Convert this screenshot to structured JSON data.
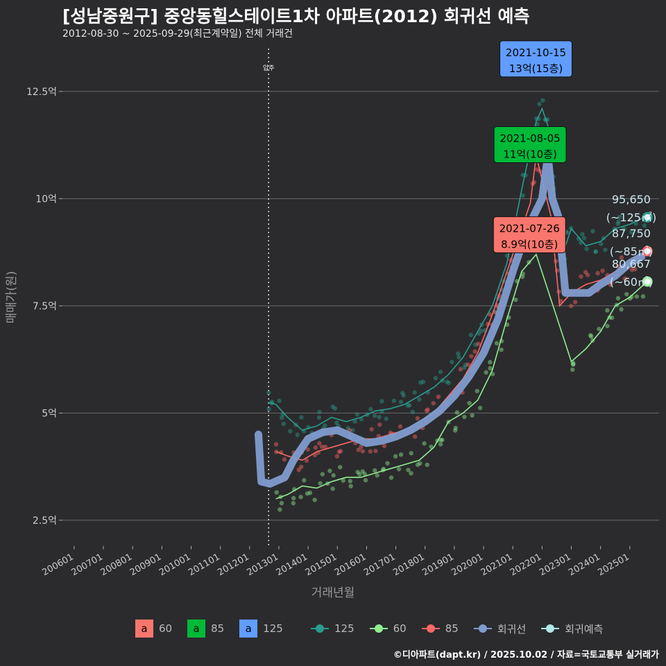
{
  "title": "[성남중원구] 중앙동힐스테이트1차 아파트(2012) 회귀선 예측",
  "subtitle": "2012-08-30 ~ 2025-09-29(최근계약일) 전체 거래건",
  "footer": "©디아파트(dapt.kr) / 2025.10.02 / 자료=국토교통부 실거래가",
  "chart_data": {
    "type": "line",
    "xlabel": "거래년월",
    "ylabel": "매매가(원)",
    "x_ticks": [
      "200601",
      "200701",
      "200801",
      "200901",
      "201001",
      "201101",
      "201201",
      "201301",
      "201401",
      "201501",
      "201601",
      "201701",
      "201801",
      "201901",
      "202001",
      "202101",
      "202201",
      "202301",
      "202401",
      "202501"
    ],
    "x_range": [
      2005.6,
      2026.0
    ],
    "y_ticks": [
      "2.5억",
      "5억",
      "7.5억",
      "10억",
      "12.5억"
    ],
    "y_tick_values": [
      2.5,
      5,
      7.5,
      10,
      12.5
    ],
    "y_range": [
      1.9,
      13.5
    ],
    "grid": true,
    "vline": {
      "x": 2012.65,
      "label": "입주"
    },
    "colors": {
      "s60": "#f8766d",
      "s85": "#00ba38",
      "s125": "#619cff",
      "line125": "#2a9d8f",
      "line60": "#90ee90",
      "line85": "#ff6666",
      "regression": "#7f9ccf",
      "forecast": "#b0e8e8"
    },
    "series": [
      {
        "name": "125",
        "values": [
          [
            2012.63,
            5.25
          ],
          [
            2012.9,
            5.2
          ],
          [
            2013.3,
            4.9
          ],
          [
            2013.8,
            4.6
          ],
          [
            2014.3,
            4.7
          ],
          [
            2014.8,
            4.9
          ],
          [
            2015.3,
            4.8
          ],
          [
            2015.8,
            4.9
          ],
          [
            2016.3,
            5.05
          ],
          [
            2016.8,
            5.1
          ],
          [
            2017.3,
            5.2
          ],
          [
            2017.8,
            5.4
          ],
          [
            2018.3,
            5.6
          ],
          [
            2018.8,
            5.9
          ],
          [
            2019.3,
            6.3
          ],
          [
            2019.8,
            6.9
          ],
          [
            2020.3,
            7.5
          ],
          [
            2020.8,
            8.5
          ],
          [
            2021.3,
            10.2
          ],
          [
            2021.8,
            11.8
          ],
          [
            2022.0,
            12.1
          ],
          [
            2022.2,
            11.7
          ],
          [
            2022.6,
            8.5
          ],
          [
            2023.0,
            9.3
          ],
          [
            2023.5,
            8.9
          ],
          [
            2024.0,
            9.0
          ],
          [
            2024.5,
            9.3
          ],
          [
            2025.0,
            9.4
          ],
          [
            2025.6,
            9.6
          ]
        ]
      },
      {
        "name": "60",
        "values": [
          [
            2012.9,
            3.0
          ],
          [
            2013.3,
            3.1
          ],
          [
            2013.8,
            3.3
          ],
          [
            2014.3,
            3.25
          ],
          [
            2014.8,
            3.4
          ],
          [
            2015.3,
            3.5
          ],
          [
            2015.8,
            3.5
          ],
          [
            2016.3,
            3.6
          ],
          [
            2016.8,
            3.7
          ],
          [
            2017.3,
            3.8
          ],
          [
            2017.8,
            3.9
          ],
          [
            2018.3,
            4.2
          ],
          [
            2018.8,
            4.8
          ],
          [
            2019.3,
            5.0
          ],
          [
            2019.8,
            5.3
          ],
          [
            2020.3,
            6.0
          ],
          [
            2020.8,
            7.2
          ],
          [
            2021.3,
            8.3
          ],
          [
            2021.8,
            8.7
          ],
          [
            2023.0,
            6.2
          ],
          [
            2023.5,
            6.5
          ],
          [
            2024.0,
            6.9
          ],
          [
            2024.5,
            7.5
          ],
          [
            2025.0,
            7.7
          ],
          [
            2025.6,
            8.07
          ]
        ]
      },
      {
        "name": "85",
        "values": [
          [
            2012.9,
            4.1
          ],
          [
            2013.3,
            4.0
          ],
          [
            2013.8,
            3.9
          ],
          [
            2014.3,
            4.1
          ],
          [
            2014.8,
            4.2
          ],
          [
            2015.3,
            4.3
          ],
          [
            2015.8,
            4.4
          ],
          [
            2016.3,
            4.4
          ],
          [
            2016.8,
            4.5
          ],
          [
            2017.3,
            4.6
          ],
          [
            2017.8,
            4.8
          ],
          [
            2018.3,
            5.0
          ],
          [
            2018.8,
            5.4
          ],
          [
            2019.3,
            5.8
          ],
          [
            2019.8,
            6.4
          ],
          [
            2020.3,
            7.3
          ],
          [
            2020.8,
            8.3
          ],
          [
            2021.3,
            9.3
          ],
          [
            2021.6,
            9.9
          ],
          [
            2021.8,
            11.0
          ],
          [
            2022.3,
            9.6
          ],
          [
            2022.6,
            7.5
          ],
          [
            2023.0,
            7.8
          ],
          [
            2023.5,
            8.0
          ],
          [
            2024.0,
            8.1
          ],
          [
            2024.5,
            8.3
          ],
          [
            2025.0,
            8.5
          ],
          [
            2025.6,
            8.78
          ]
        ]
      },
      {
        "name": "회귀선",
        "values": [
          [
            2012.3,
            4.5
          ],
          [
            2012.4,
            3.4
          ],
          [
            2012.7,
            3.35
          ],
          [
            2013.2,
            3.5
          ],
          [
            2013.5,
            3.9
          ],
          [
            2014.0,
            4.4
          ],
          [
            2014.5,
            4.55
          ],
          [
            2015.0,
            4.6
          ],
          [
            2015.5,
            4.45
          ],
          [
            2016.0,
            4.3
          ],
          [
            2016.5,
            4.35
          ],
          [
            2017.0,
            4.45
          ],
          [
            2017.5,
            4.6
          ],
          [
            2018.0,
            4.8
          ],
          [
            2018.5,
            5.05
          ],
          [
            2019.0,
            5.4
          ],
          [
            2019.5,
            5.85
          ],
          [
            2020.0,
            6.4
          ],
          [
            2020.5,
            7.2
          ],
          [
            2021.0,
            8.3
          ],
          [
            2021.5,
            9.3
          ],
          [
            2022.0,
            10.0
          ],
          [
            2022.2,
            11.0
          ],
          [
            2022.35,
            10.0
          ],
          [
            2022.55,
            9.6
          ],
          [
            2022.8,
            7.8
          ],
          [
            2023.2,
            7.8
          ],
          [
            2023.6,
            7.8
          ],
          [
            2024.0,
            8.0
          ],
          [
            2024.5,
            8.2
          ],
          [
            2025.0,
            8.5
          ],
          [
            2025.4,
            8.65
          ]
        ]
      },
      {
        "name": "회귀예측",
        "values": [
          [
            2025.6,
            9.565
          ],
          [
            2025.6,
            8.775
          ],
          [
            2025.6,
            8.067
          ]
        ]
      }
    ],
    "legend_fill": [
      {
        "key": "a",
        "label": "60",
        "color": "#f8766d"
      },
      {
        "key": "a",
        "label": "85",
        "color": "#00ba38"
      },
      {
        "key": "a",
        "label": "125",
        "color": "#619cff"
      }
    ],
    "legend_line": [
      {
        "label": "125",
        "color": "#2a9d8f"
      },
      {
        "label": "60",
        "color": "#90ee90"
      },
      {
        "label": "85",
        "color": "#ff6666"
      },
      {
        "label": "회귀선",
        "color": "#7f9ccf"
      },
      {
        "label": "회귀예측",
        "color": "#b0e8e8"
      }
    ],
    "callouts": [
      {
        "date": "2021-10-15",
        "price": "13억(15층)",
        "x": 2021.79,
        "y": 13.0,
        "color": "#619cff"
      },
      {
        "date": "2021-08-05",
        "price": "11억(10층)",
        "x": 2021.59,
        "y": 11.0,
        "color": "#00ba38"
      },
      {
        "date": "2021-07-26",
        "price": "8.9억(10층)",
        "x": 2021.57,
        "y": 8.9,
        "color": "#f8766d"
      }
    ],
    "forecasts": [
      {
        "value": "95,650",
        "size": "(~125㎡)",
        "y": 9.565,
        "color": "#2a9d8f"
      },
      {
        "value": "87,750",
        "size": "(~85㎡)",
        "y": 8.775,
        "color": "#ff6666"
      },
      {
        "value": "80,667",
        "size": "(~60㎡)",
        "y": 8.067,
        "color": "#90ee90"
      }
    ]
  }
}
